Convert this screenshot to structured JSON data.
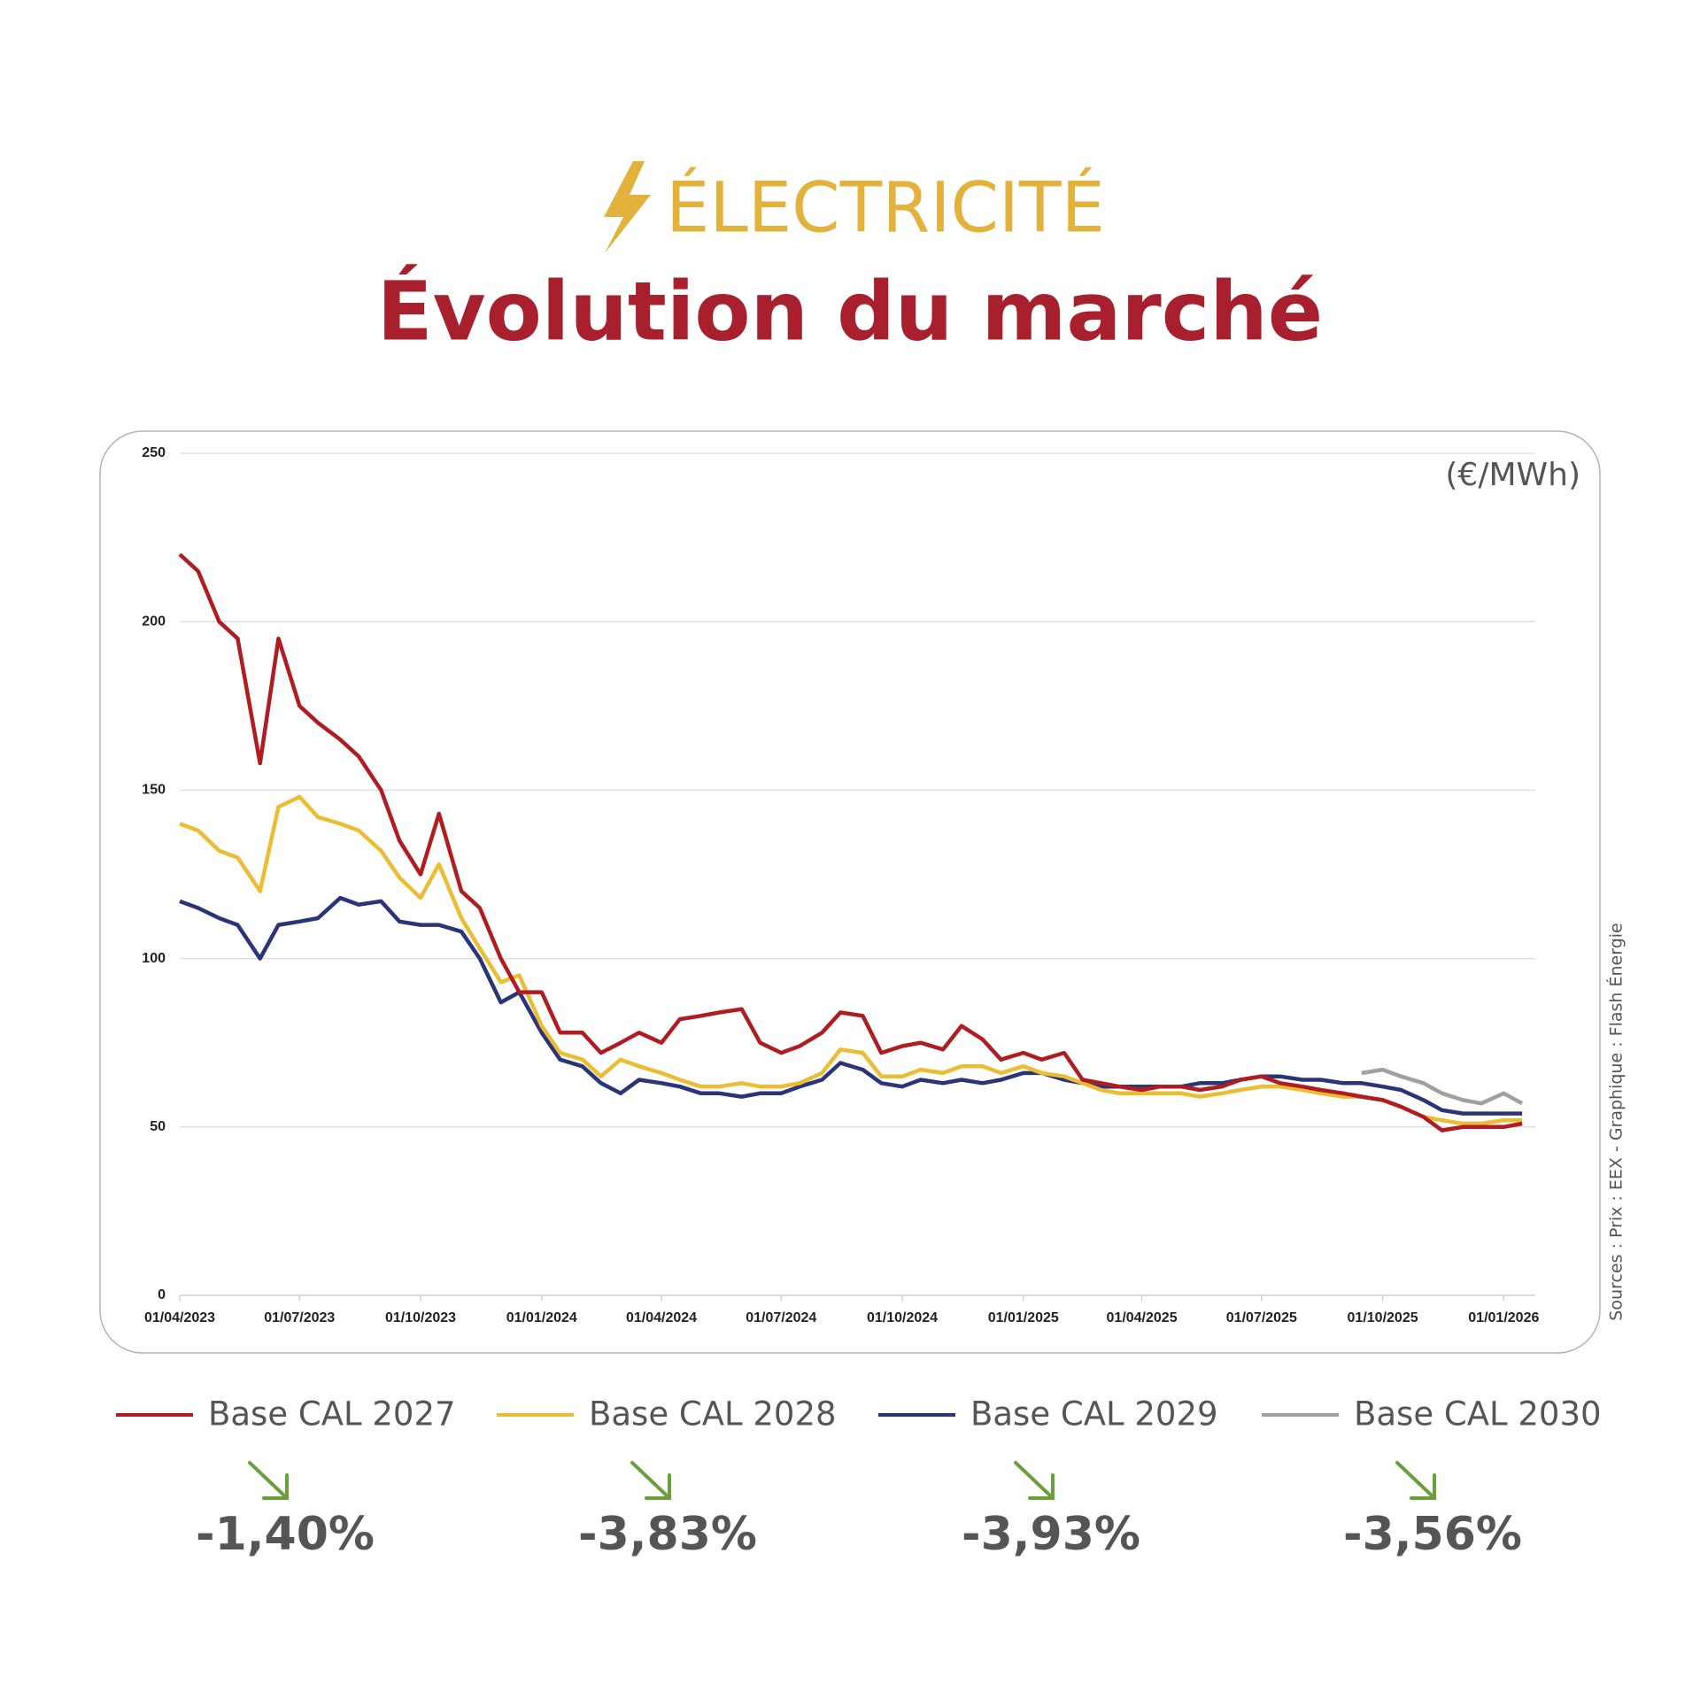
{
  "chart_data": {
    "type": "line",
    "kicker": "ÉLECTRICITÉ",
    "title": "Évolution du marché",
    "unit": "(€/MWh)",
    "source": "Sources : Prix : EEX - Graphique : Flash Énergie",
    "x": [
      "2023-04-01",
      "2023-04-15",
      "2023-05-01",
      "2023-05-15",
      "2023-06-01",
      "2023-06-15",
      "2023-07-01",
      "2023-07-15",
      "2023-08-01",
      "2023-08-15",
      "2023-09-01",
      "2023-09-15",
      "2023-10-01",
      "2023-10-15",
      "2023-11-01",
      "2023-11-15",
      "2023-12-01",
      "2023-12-15",
      "2024-01-01",
      "2024-01-15",
      "2024-02-01",
      "2024-02-15",
      "2024-03-01",
      "2024-03-15",
      "2024-04-01",
      "2024-04-15",
      "2024-05-01",
      "2024-05-15",
      "2024-06-01",
      "2024-06-15",
      "2024-07-01",
      "2024-07-15",
      "2024-08-01",
      "2024-08-15",
      "2024-09-01",
      "2024-09-15",
      "2024-10-01",
      "2024-10-15",
      "2024-11-01",
      "2024-11-15",
      "2024-12-01",
      "2024-12-15",
      "2025-01-01",
      "2025-01-15",
      "2025-02-01",
      "2025-02-15",
      "2025-03-01",
      "2025-03-15",
      "2025-04-01",
      "2025-04-15",
      "2025-05-01",
      "2025-05-15",
      "2025-06-01",
      "2025-06-15",
      "2025-07-01",
      "2025-07-15",
      "2025-08-01",
      "2025-08-15",
      "2025-09-01",
      "2025-09-15",
      "2025-10-01",
      "2025-10-15",
      "2025-11-01",
      "2025-11-15",
      "2025-12-01",
      "2025-12-15",
      "2026-01-01",
      "2026-01-15"
    ],
    "series": [
      {
        "name": "Base CAL 2027",
        "color": "#b01c22",
        "change": "-1,40%",
        "values": [
          220,
          215,
          200,
          195,
          158,
          195,
          175,
          170,
          165,
          160,
          150,
          135,
          125,
          143,
          120,
          115,
          100,
          90,
          90,
          78,
          78,
          72,
          75,
          78,
          75,
          82,
          83,
          84,
          85,
          75,
          72,
          74,
          78,
          84,
          83,
          72,
          74,
          75,
          73,
          80,
          76,
          70,
          72,
          70,
          72,
          64,
          63,
          62,
          61,
          62,
          62,
          61,
          62,
          64,
          65,
          63,
          62,
          61,
          60,
          59,
          58,
          56,
          53,
          49,
          50,
          50,
          50,
          51
        ]
      },
      {
        "name": "Base CAL 2028",
        "color": "#ecbd33",
        "change": "-3,83%",
        "values": [
          140,
          138,
          132,
          130,
          120,
          145,
          148,
          142,
          140,
          138,
          132,
          124,
          118,
          128,
          112,
          103,
          93,
          95,
          80,
          72,
          70,
          65,
          70,
          68,
          66,
          64,
          62,
          62,
          63,
          62,
          62,
          63,
          66,
          73,
          72,
          65,
          65,
          67,
          66,
          68,
          68,
          66,
          68,
          66,
          65,
          63,
          61,
          60,
          60,
          60,
          60,
          59,
          60,
          61,
          62,
          62,
          61,
          60,
          59,
          59,
          58,
          56,
          53,
          52,
          51,
          51,
          52,
          52
        ]
      },
      {
        "name": "Base CAL 2029",
        "color": "#2a3478",
        "change": "-3,93%",
        "values": [
          117,
          115,
          112,
          110,
          100,
          110,
          111,
          112,
          118,
          116,
          117,
          111,
          110,
          110,
          108,
          100,
          87,
          90,
          78,
          70,
          68,
          63,
          60,
          64,
          63,
          62,
          60,
          60,
          59,
          60,
          60,
          62,
          64,
          69,
          67,
          63,
          62,
          64,
          63,
          64,
          63,
          64,
          66,
          66,
          64,
          63,
          62,
          62,
          62,
          62,
          62,
          63,
          63,
          64,
          65,
          65,
          64,
          64,
          63,
          63,
          62,
          61,
          58,
          55,
          54,
          54,
          54,
          54
        ]
      },
      {
        "name": "Base CAL 2030",
        "color": "#a0a0a0",
        "change": "-3,56%",
        "values": [
          null,
          null,
          null,
          null,
          null,
          null,
          null,
          null,
          null,
          null,
          null,
          null,
          null,
          null,
          null,
          null,
          null,
          null,
          null,
          null,
          null,
          null,
          null,
          null,
          null,
          null,
          null,
          null,
          null,
          null,
          null,
          null,
          null,
          null,
          null,
          null,
          null,
          null,
          null,
          null,
          null,
          null,
          null,
          null,
          null,
          null,
          null,
          null,
          null,
          null,
          null,
          null,
          null,
          null,
          null,
          null,
          null,
          null,
          null,
          66,
          67,
          65,
          63,
          60,
          58,
          57,
          60,
          57
        ]
      }
    ],
    "xlim": [
      "2023-04-01",
      "2026-01-25"
    ],
    "xticks": [
      {
        "value": "2023-04-01",
        "label": "01/04/2023"
      },
      {
        "value": "2023-07-01",
        "label": "01/07/2023"
      },
      {
        "value": "2023-10-01",
        "label": "01/10/2023"
      },
      {
        "value": "2024-01-01",
        "label": "01/01/2024"
      },
      {
        "value": "2024-04-01",
        "label": "01/04/2024"
      },
      {
        "value": "2024-07-01",
        "label": "01/07/2024"
      },
      {
        "value": "2024-10-01",
        "label": "01/10/2024"
      },
      {
        "value": "2025-01-01",
        "label": "01/01/2025"
      },
      {
        "value": "2025-04-01",
        "label": "01/04/2025"
      },
      {
        "value": "2025-07-01",
        "label": "01/07/2025"
      },
      {
        "value": "2025-10-01",
        "label": "01/10/2025"
      },
      {
        "value": "2026-01-01",
        "label": "01/01/2026"
      }
    ],
    "ylim": [
      0,
      250
    ],
    "yticks": [
      0,
      50,
      100,
      150,
      200,
      250
    ],
    "grid": true
  }
}
